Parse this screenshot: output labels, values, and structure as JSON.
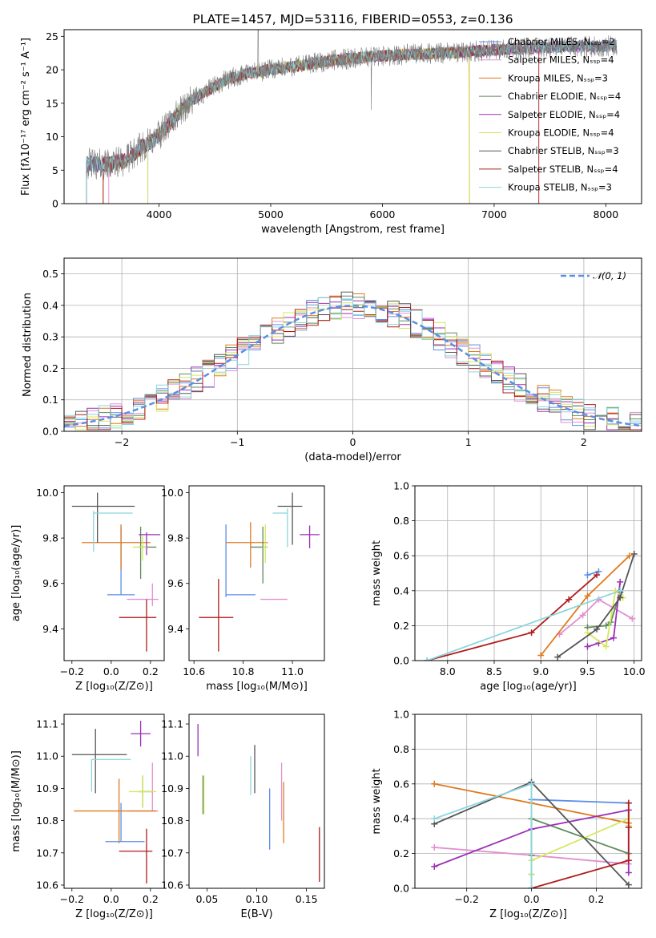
{
  "colors": {
    "chabrier_miles": "#5b8ee6",
    "salpeter_miles": "#e38fd0",
    "kroupa_miles": "#e07a1f",
    "chabrier_elodie": "#5e8c5e",
    "salpeter_elodie": "#9b30b5",
    "kroupa_elodie": "#d4e85a",
    "chabrier_stelib": "#555555",
    "salpeter_stelib": "#b01c1c",
    "kroupa_stelib": "#8ad6dc",
    "reference": "#5b8ee6"
  },
  "chart_data": [
    {
      "id": "spectrum",
      "type": "line",
      "title": "PLATE=1457, MJD=53116, FIBERID=0553, z=0.136",
      "xlabel": "wavelength [Angstrom, rest frame]",
      "ylabel": "Flux [fλ10⁻¹⁷ erg cm⁻² s⁻¹ A⁻¹]",
      "xlim": [
        3150,
        8320
      ],
      "ylim": [
        0,
        26
      ],
      "xticks": [
        4000,
        5000,
        6000,
        7000,
        8000
      ],
      "yticks": [
        0,
        5,
        10,
        15,
        20,
        25
      ],
      "legend_position": "top-right",
      "legend": [
        {
          "label": "Chabrier MILES, Nₛₛₚ=2",
          "color_key": "chabrier_miles"
        },
        {
          "label": "Salpeter MILES, Nₛₛₚ=4",
          "color_key": "salpeter_miles"
        },
        {
          "label": "Kroupa MILES, Nₛₛₚ=3",
          "color_key": "kroupa_miles"
        },
        {
          "label": "Chabrier ELODIE, Nₛₛₚ=4",
          "color_key": "chabrier_elodie"
        },
        {
          "label": "Salpeter ELODIE, Nₛₛₚ=4",
          "color_key": "salpeter_elodie"
        },
        {
          "label": "Kroupa ELODIE, Nₛₛₚ=4",
          "color_key": "kroupa_elodie"
        },
        {
          "label": "Chabrier STELIB, Nₛₛₚ=3",
          "color_key": "chabrier_stelib"
        },
        {
          "label": "Salpeter STELIB, Nₛₛₚ=4",
          "color_key": "salpeter_stelib"
        },
        {
          "label": "Kroupa STELIB, Nₛₛₚ=3",
          "color_key": "kroupa_stelib"
        }
      ],
      "continuum": {
        "x": [
          3350,
          3550,
          3700,
          3850,
          3950,
          4100,
          4200,
          4300,
          4400,
          4600,
          4800,
          5000,
          5200,
          5500,
          5800,
          6100,
          6400,
          6700,
          7000,
          7300,
          7600,
          7900,
          8100
        ],
        "y": [
          6,
          5.8,
          6.5,
          8.5,
          9.5,
          12,
          14,
          15.5,
          16.5,
          18.5,
          19.5,
          20,
          20.5,
          21.3,
          21.8,
          22.2,
          22.4,
          22.6,
          23,
          23.2,
          23.5,
          23.5,
          23.6
        ]
      },
      "models_start_x": [
        3900,
        3550,
        3500,
        3350,
        3350,
        3900,
        3350,
        3500,
        3350
      ],
      "models_end_x": [
        8100,
        8100,
        6780,
        8100,
        8100,
        6780,
        8100,
        7400,
        8100
      ]
    },
    {
      "id": "residuals",
      "type": "histogram",
      "xlabel": "(data-model)/error",
      "ylabel": "Normed distribution",
      "xlim": [
        -2.5,
        2.5
      ],
      "ylim": [
        0,
        0.55
      ],
      "xticks": [
        -2,
        -1,
        0,
        1,
        2
      ],
      "yticks": [
        0.0,
        0.1,
        0.2,
        0.3,
        0.4,
        0.5
      ],
      "legend_position": "top-right",
      "reference_label": "𝒩(0, 1)",
      "bin_width": 0.1
    },
    {
      "id": "age_vs_z",
      "type": "errorbar",
      "xlabel": "Z [log₁₀(Z/Z⊙)]",
      "ylabel": "age  [log₁₀(age/yr)]",
      "xlim": [
        -0.24,
        0.27
      ],
      "ylim": [
        9.26,
        10.03
      ],
      "xticks": [
        -0.2,
        0.0,
        0.2
      ],
      "yticks": [
        9.4,
        9.6,
        9.8,
        10.0
      ],
      "points": [
        {
          "key": "chabrier_miles",
          "x": 0.05,
          "y": 9.55,
          "xerr": [
            0.07,
            0.07
          ],
          "yerr": [
            0.0,
            0.3
          ]
        },
        {
          "key": "salpeter_miles",
          "x": 0.21,
          "y": 9.53,
          "xerr": [
            0.13,
            0.03
          ],
          "yerr": [
            0.03,
            0.07
          ]
        },
        {
          "key": "kroupa_miles",
          "x": 0.05,
          "y": 9.78,
          "xerr": [
            0.2,
            0.15
          ],
          "yerr": [
            0.12,
            0.08
          ]
        },
        {
          "key": "chabrier_elodie",
          "x": 0.15,
          "y": 9.76,
          "xerr": [
            0.01,
            0.08
          ],
          "yerr": [
            0.14,
            0.09
          ]
        },
        {
          "key": "salpeter_elodie",
          "x": 0.18,
          "y": 9.815,
          "xerr": [
            0.04,
            0.07
          ],
          "yerr": [
            0.09,
            0.01
          ]
        },
        {
          "key": "kroupa_elodie",
          "x": 0.16,
          "y": 9.76,
          "xerr": [
            0.05,
            0.02
          ],
          "yerr": [
            0.06,
            0.05
          ]
        },
        {
          "key": "chabrier_stelib",
          "x": -0.07,
          "y": 9.94,
          "xerr": [
            0.13,
            0.19
          ],
          "yerr": [
            0.16,
            0.06
          ]
        },
        {
          "key": "salpeter_stelib",
          "x": 0.18,
          "y": 9.45,
          "xerr": [
            0.14,
            0.05
          ],
          "yerr": [
            0.15,
            0.08
          ]
        },
        {
          "key": "kroupa_stelib",
          "x": -0.09,
          "y": 9.91,
          "xerr": [
            0.0,
            0.2
          ],
          "yerr": [
            0.17,
            0.01
          ]
        }
      ]
    },
    {
      "id": "age_vs_mass",
      "type": "errorbar",
      "xlabel": "mass [log₁₀(M/M⊙)]",
      "ylabel": "",
      "xlim": [
        10.58,
        11.13
      ],
      "ylim": [
        9.26,
        10.03
      ],
      "xticks": [
        10.6,
        10.8,
        11.0
      ],
      "yticks": [
        9.4,
        9.6,
        9.8,
        10.0
      ],
      "points": [
        {
          "key": "chabrier_miles",
          "x": 10.73,
          "y": 9.55,
          "xerr": [
            0.0,
            0.12
          ],
          "yerr": [
            0.01,
            0.31
          ]
        },
        {
          "key": "salpeter_miles",
          "x": 10.98,
          "y": 9.53,
          "xerr": [
            0.11,
            0.0
          ],
          "yerr": [
            0.0,
            0.0
          ]
        },
        {
          "key": "kroupa_miles",
          "x": 10.83,
          "y": 9.78,
          "xerr": [
            0.1,
            0.07
          ],
          "yerr": [
            0.11,
            0.09
          ]
        },
        {
          "key": "chabrier_elodie",
          "x": 10.88,
          "y": 9.76,
          "xerr": [
            0.05,
            0.02
          ],
          "yerr": [
            0.16,
            0.09
          ]
        },
        {
          "key": "salpeter_elodie",
          "x": 11.07,
          "y": 9.815,
          "xerr": [
            0.04,
            0.04
          ],
          "yerr": [
            0.06,
            0.04
          ]
        },
        {
          "key": "kroupa_elodie",
          "x": 10.89,
          "y": 9.76,
          "xerr": [
            0.01,
            0.01
          ],
          "yerr": [
            0.07,
            0.1
          ]
        },
        {
          "key": "chabrier_stelib",
          "x": 11.0,
          "y": 9.94,
          "xerr": [
            0.06,
            0.04
          ],
          "yerr": [
            0.17,
            0.06
          ]
        },
        {
          "key": "salpeter_stelib",
          "x": 10.7,
          "y": 9.45,
          "xerr": [
            0.08,
            0.06
          ],
          "yerr": [
            0.15,
            0.17
          ]
        },
        {
          "key": "kroupa_stelib",
          "x": 10.98,
          "y": 9.91,
          "xerr": [
            0.06,
            0.0
          ],
          "yerr": [
            0.15,
            0.02
          ]
        }
      ]
    },
    {
      "id": "weight_vs_age",
      "type": "line",
      "xlabel": "age  [log₁₀(age/yr)]",
      "ylabel": "mass weight",
      "xlim": [
        7.65,
        10.08
      ],
      "ylim": [
        0.0,
        1.0
      ],
      "xticks": [
        8.0,
        8.5,
        9.0,
        9.5,
        10.0
      ],
      "yticks": [
        0.0,
        0.2,
        0.4,
        0.6,
        0.8,
        1.0
      ],
      "grid": true,
      "series": [
        {
          "key": "chabrier_miles",
          "x": [
            9.5,
            9.62
          ],
          "y": [
            0.49,
            0.51
          ]
        },
        {
          "key": "salpeter_miles",
          "x": [
            9.2,
            9.45,
            9.62,
            9.98
          ],
          "y": [
            0.15,
            0.26,
            0.35,
            0.24
          ]
        },
        {
          "key": "kroupa_miles",
          "x": [
            9.0,
            9.5,
            9.95
          ],
          "y": [
            0.03,
            0.37,
            0.6
          ]
        },
        {
          "key": "chabrier_elodie",
          "x": [
            9.5,
            9.7,
            9.75,
            9.85
          ],
          "y": [
            0.19,
            0.2,
            0.22,
            0.39
          ]
        },
        {
          "key": "salpeter_elodie",
          "x": [
            9.5,
            9.62,
            9.78,
            9.85
          ],
          "y": [
            0.08,
            0.1,
            0.13,
            0.45
          ]
        },
        {
          "key": "kroupa_elodie",
          "x": [
            9.5,
            9.7,
            9.8,
            9.88
          ],
          "y": [
            0.16,
            0.08,
            0.4,
            0.36
          ]
        },
        {
          "key": "chabrier_stelib",
          "x": [
            9.18,
            9.6,
            9.85,
            10.0
          ],
          "y": [
            0.02,
            0.18,
            0.36,
            0.61
          ]
        },
        {
          "key": "salpeter_stelib",
          "x": [
            7.78,
            8.9,
            9.3,
            9.6
          ],
          "y": [
            0.0,
            0.16,
            0.35,
            0.49
          ]
        },
        {
          "key": "kroupa_stelib",
          "x": [
            7.78,
            9.85
          ],
          "y": [
            0.0,
            0.4
          ]
        }
      ]
    },
    {
      "id": "mass_vs_z",
      "type": "errorbar",
      "xlabel": "Z [log₁₀(Z/Z⊙)]",
      "ylabel": "mass [log₁₀(M/M⊙)]",
      "xlim": [
        -0.24,
        0.27
      ],
      "ylim": [
        10.59,
        11.13
      ],
      "xticks": [
        -0.2,
        0.0,
        0.2
      ],
      "yticks": [
        10.6,
        10.7,
        10.8,
        10.9,
        11.0,
        11.1
      ],
      "points": [
        {
          "key": "chabrier_miles",
          "x": 0.05,
          "y": 10.735,
          "xerr": [
            0.08,
            0.12
          ],
          "yerr": [
            0.0,
            0.12
          ]
        },
        {
          "key": "salpeter_miles",
          "x": 0.21,
          "y": 10.83,
          "xerr": [
            0.12,
            0.03
          ],
          "yerr": [
            0.0,
            0.15
          ]
        },
        {
          "key": "kroupa_miles",
          "x": 0.04,
          "y": 10.83,
          "xerr": [
            0.23,
            0.19
          ],
          "yerr": [
            0.1,
            0.1
          ]
        },
        {
          "key": "chabrier_elodie",
          "x": 0.16,
          "y": 10.89,
          "xerr": [
            0.02,
            0.05
          ],
          "yerr": [
            0.05,
            0.05
          ]
        },
        {
          "key": "salpeter_elodie",
          "x": 0.15,
          "y": 11.07,
          "xerr": [
            0.05,
            0.05
          ],
          "yerr": [
            0.04,
            0.04
          ]
        },
        {
          "key": "kroupa_elodie",
          "x": 0.16,
          "y": 10.89,
          "xerr": [
            0.07,
            0.07
          ],
          "yerr": [
            0.05,
            0.05
          ]
        },
        {
          "key": "chabrier_stelib",
          "x": -0.08,
          "y": 11.005,
          "xerr": [
            0.12,
            0.16
          ],
          "yerr": [
            0.12,
            0.08
          ]
        },
        {
          "key": "salpeter_stelib",
          "x": 0.18,
          "y": 10.705,
          "xerr": [
            0.14,
            0.03
          ],
          "yerr": [
            0.1,
            0.07
          ]
        },
        {
          "key": "kroupa_stelib",
          "x": -0.1,
          "y": 10.99,
          "xerr": [
            0.0,
            0.2
          ],
          "yerr": [
            0.1,
            0.0
          ]
        }
      ]
    },
    {
      "id": "mass_vs_ebv",
      "type": "errorbar",
      "xlabel": "E(B-V)",
      "ylabel": "",
      "xlim": [
        0.032,
        0.168
      ],
      "ylim": [
        10.59,
        11.13
      ],
      "xticks": [
        0.05,
        0.1,
        0.15
      ],
      "yticks": [
        10.6,
        10.7,
        10.8,
        10.9,
        11.0,
        11.1
      ],
      "points": [
        {
          "key": "chabrier_miles",
          "x": 0.113,
          "y": 10.8,
          "xerr": [
            0,
            0
          ],
          "yerr": [
            0.09,
            0.1
          ]
        },
        {
          "key": "salpeter_miles",
          "x": 0.125,
          "y": 10.88,
          "xerr": [
            0,
            0
          ],
          "yerr": [
            0.08,
            0.1
          ]
        },
        {
          "key": "kroupa_miles",
          "x": 0.127,
          "y": 10.83,
          "xerr": [
            0,
            0
          ],
          "yerr": [
            0.1,
            0.09
          ]
        },
        {
          "key": "chabrier_elodie",
          "x": 0.046,
          "y": 10.88,
          "xerr": [
            0,
            0
          ],
          "yerr": [
            0.06,
            0.06
          ]
        },
        {
          "key": "salpeter_elodie",
          "x": 0.041,
          "y": 11.05,
          "xerr": [
            0,
            0
          ],
          "yerr": [
            0.05,
            0.05
          ]
        },
        {
          "key": "kroupa_elodie",
          "x": 0.047,
          "y": 10.88,
          "xerr": [
            0,
            0
          ],
          "yerr": [
            0.06,
            0.06
          ]
        },
        {
          "key": "chabrier_stelib",
          "x": 0.098,
          "y": 10.965,
          "xerr": [
            0,
            0
          ],
          "yerr": [
            0.08,
            0.07
          ]
        },
        {
          "key": "salpeter_stelib",
          "x": 0.163,
          "y": 10.69,
          "xerr": [
            0,
            0
          ],
          "yerr": [
            0.08,
            0.09
          ]
        },
        {
          "key": "kroupa_stelib",
          "x": 0.094,
          "y": 10.94,
          "xerr": [
            0,
            0
          ],
          "yerr": [
            0.06,
            0.06
          ]
        }
      ]
    },
    {
      "id": "weight_vs_z",
      "type": "line",
      "xlabel": "Z [log₁₀(Z/Z⊙)]",
      "ylabel": "mass weight",
      "xlim": [
        -0.36,
        0.34
      ],
      "ylim": [
        0.0,
        1.0
      ],
      "xticks": [
        -0.2,
        0.0,
        0.2
      ],
      "yticks": [
        0.0,
        0.2,
        0.4,
        0.6,
        0.8,
        1.0
      ],
      "grid": true,
      "series": [
        {
          "key": "chabrier_miles",
          "x": [
            0.0,
            0.3
          ],
          "y": [
            0.51,
            0.49
          ]
        },
        {
          "key": "salpeter_miles",
          "x": [
            -0.3,
            0.0,
            0.3
          ],
          "y": [
            0.235,
            0.19,
            0.14
          ]
        },
        {
          "key": "kroupa_miles",
          "x": [
            -0.3,
            0.0,
            0.3
          ],
          "y": [
            0.6,
            0.49,
            0.375
          ]
        },
        {
          "key": "chabrier_elodie",
          "x": [
            0.0,
            0.0,
            0.0,
            0.3
          ],
          "y": [
            0.08,
            0.19,
            0.4,
            0.2
          ]
        },
        {
          "key": "salpeter_elodie",
          "x": [
            -0.3,
            0.0,
            0.3,
            0.3
          ],
          "y": [
            0.125,
            0.34,
            0.45,
            0.09
          ]
        },
        {
          "key": "kroupa_elodie",
          "x": [
            0.0,
            0.0,
            0.3,
            0.3
          ],
          "y": [
            0.08,
            0.16,
            0.4,
            0.36
          ]
        },
        {
          "key": "chabrier_stelib",
          "x": [
            -0.3,
            0.0,
            0.3
          ],
          "y": [
            0.37,
            0.61,
            0.02
          ]
        },
        {
          "key": "salpeter_stelib",
          "x": [
            0.0,
            0.3,
            0.3,
            0.3
          ],
          "y": [
            0.0,
            0.16,
            0.35,
            0.49
          ]
        },
        {
          "key": "kroupa_stelib",
          "x": [
            -0.3,
            0.0,
            0.0
          ],
          "y": [
            0.4,
            0.6,
            0.0
          ]
        }
      ]
    }
  ]
}
